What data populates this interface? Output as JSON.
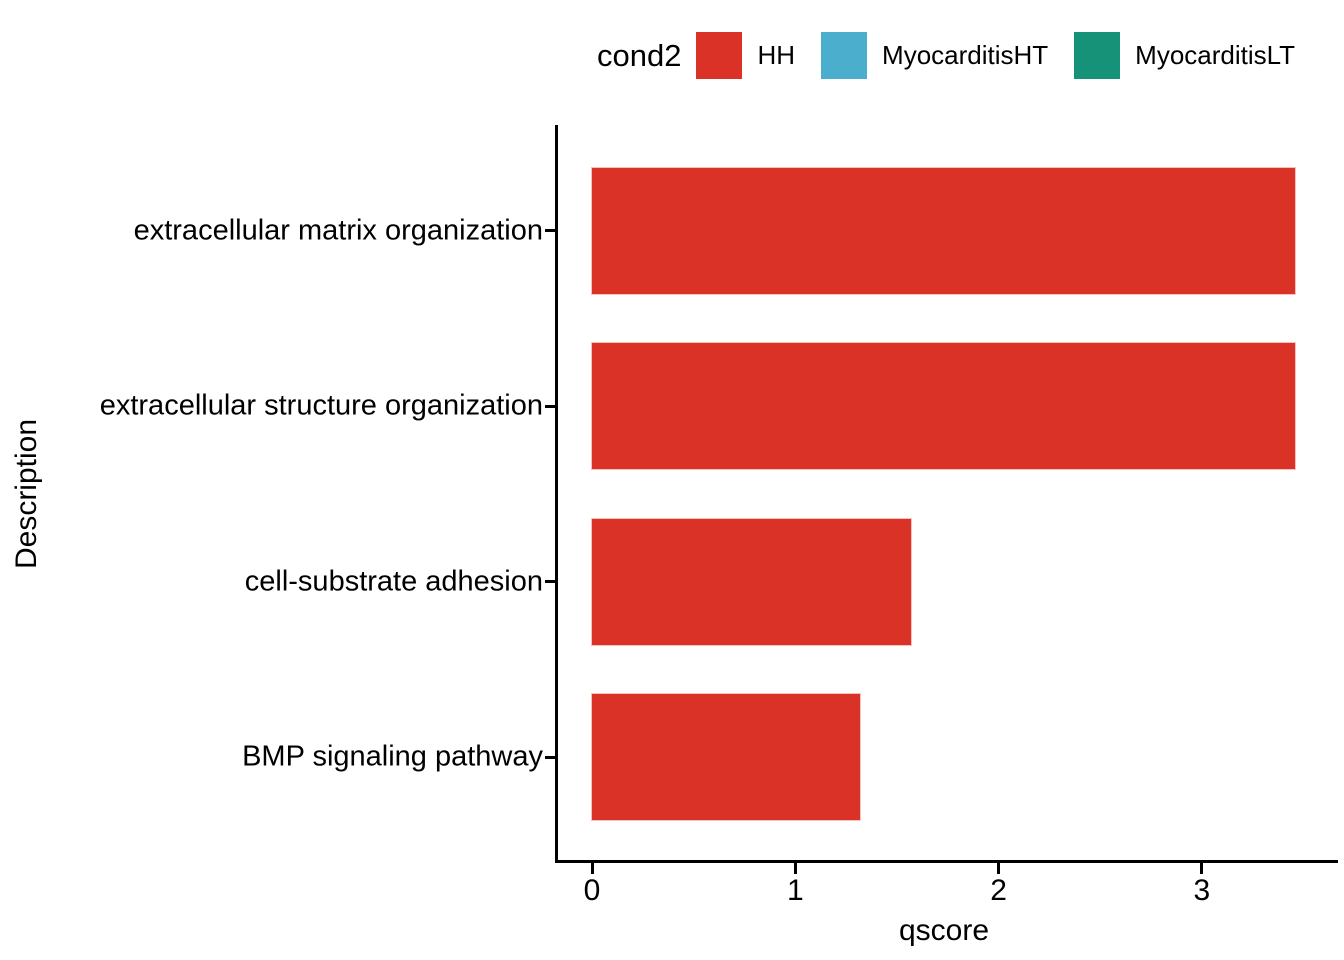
{
  "chart_data": {
    "type": "bar",
    "orientation": "horizontal",
    "title": "",
    "xlabel": "qscore",
    "ylabel": "Description",
    "categories": [
      "extracellular matrix organization",
      "extracellular structure organization",
      "cell-substrate adhesion",
      "BMP signaling pathway"
    ],
    "series": [
      {
        "name": "HH",
        "color": "#DB3227",
        "values": [
          3.46,
          3.46,
          1.57,
          1.32
        ]
      }
    ],
    "x_ticks": [
      0,
      1,
      2,
      3
    ],
    "xlim": [
      0,
      3.64
    ],
    "grid": false,
    "axis_color": "#000000",
    "legend": {
      "title": "cond2",
      "position": "top",
      "entries": [
        {
          "label": "HH",
          "color": "#DB3227"
        },
        {
          "label": "MyocarditisHT",
          "color": "#4AAECC"
        },
        {
          "label": "MyocarditisLT",
          "color": "#159278"
        }
      ]
    }
  }
}
